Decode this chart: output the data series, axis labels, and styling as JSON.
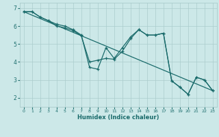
{
  "xlabel": "Humidex (Indice chaleur)",
  "background_color": "#cce8e8",
  "grid_color": "#aacccc",
  "line_color": "#1a6b6b",
  "marker": "+",
  "xlim": [
    -0.5,
    23.5
  ],
  "ylim": [
    1.5,
    7.3
  ],
  "xticks": [
    0,
    1,
    2,
    3,
    4,
    5,
    6,
    7,
    8,
    9,
    10,
    11,
    12,
    13,
    14,
    15,
    16,
    17,
    18,
    19,
    20,
    21,
    22,
    23
  ],
  "yticks": [
    2,
    3,
    4,
    5,
    6,
    7
  ],
  "line1_x": [
    0,
    1,
    2,
    3,
    4,
    5,
    6,
    7,
    8,
    9,
    10,
    11,
    12,
    13,
    14,
    15,
    16,
    17,
    18,
    19,
    20,
    21,
    22,
    23
  ],
  "line1_y": [
    6.8,
    6.8,
    6.5,
    6.3,
    6.1,
    6.0,
    5.8,
    5.5,
    3.7,
    3.6,
    4.8,
    4.2,
    4.8,
    5.4,
    5.8,
    5.5,
    5.5,
    5.6,
    2.95,
    2.6,
    2.2,
    3.15,
    3.0,
    2.4
  ],
  "line2_x": [
    0,
    1,
    2,
    3,
    4,
    5,
    6,
    7,
    8,
    9,
    10,
    11,
    12,
    13,
    14,
    15,
    16,
    17,
    18,
    19,
    20,
    21,
    22,
    23
  ],
  "line2_y": [
    6.8,
    6.8,
    6.5,
    6.3,
    6.0,
    5.9,
    5.75,
    5.45,
    4.0,
    4.1,
    4.2,
    4.15,
    4.6,
    5.3,
    5.8,
    5.5,
    5.5,
    5.6,
    2.95,
    2.6,
    2.2,
    3.15,
    3.0,
    2.4
  ],
  "line3_x": [
    0,
    23
  ],
  "line3_y": [
    6.8,
    2.4
  ]
}
